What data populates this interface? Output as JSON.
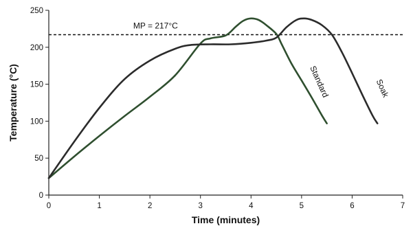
{
  "chart_data": {
    "type": "line",
    "title": "",
    "xlabel": "Time (minutes)",
    "ylabel": "Temperature (°C)",
    "xlim": [
      0,
      7
    ],
    "ylim": [
      0,
      250
    ],
    "x_ticks": [
      0,
      1,
      2,
      3,
      4,
      5,
      6,
      7
    ],
    "y_ticks": [
      0,
      50,
      100,
      150,
      200,
      250
    ],
    "grid": false,
    "legend": "none",
    "reference_lines": [
      {
        "label": "MP = 217°C",
        "y": 217,
        "style": "dashed"
      }
    ],
    "series": [
      {
        "name": "Standard",
        "color": "#2f4f2f",
        "points": [
          [
            0,
            23
          ],
          [
            0.5,
            52
          ],
          [
            1,
            80
          ],
          [
            1.5,
            107
          ],
          [
            2,
            133
          ],
          [
            2.5,
            162
          ],
          [
            3,
            205
          ],
          [
            3.2,
            212
          ],
          [
            3.5,
            216
          ],
          [
            3.7,
            228
          ],
          [
            3.85,
            236
          ],
          [
            4.0,
            239
          ],
          [
            4.15,
            237
          ],
          [
            4.3,
            230
          ],
          [
            4.5,
            218
          ],
          [
            4.6,
            205
          ],
          [
            4.8,
            178
          ],
          [
            5.0,
            155
          ],
          [
            5.2,
            132
          ],
          [
            5.4,
            108
          ],
          [
            5.5,
            97
          ]
        ]
      },
      {
        "name": "Soak",
        "color": "#2b2b2b",
        "points": [
          [
            0,
            23
          ],
          [
            0.5,
            72
          ],
          [
            1,
            118
          ],
          [
            1.5,
            157
          ],
          [
            2,
            182
          ],
          [
            2.5,
            198
          ],
          [
            2.8,
            203
          ],
          [
            3.2,
            204
          ],
          [
            3.6,
            204
          ],
          [
            4.0,
            206
          ],
          [
            4.3,
            209
          ],
          [
            4.5,
            213
          ],
          [
            4.7,
            227
          ],
          [
            4.9,
            237
          ],
          [
            5.05,
            239
          ],
          [
            5.2,
            237
          ],
          [
            5.4,
            230
          ],
          [
            5.6,
            217
          ],
          [
            5.8,
            193
          ],
          [
            6.0,
            165
          ],
          [
            6.2,
            136
          ],
          [
            6.4,
            108
          ],
          [
            6.5,
            97
          ]
        ]
      }
    ]
  }
}
